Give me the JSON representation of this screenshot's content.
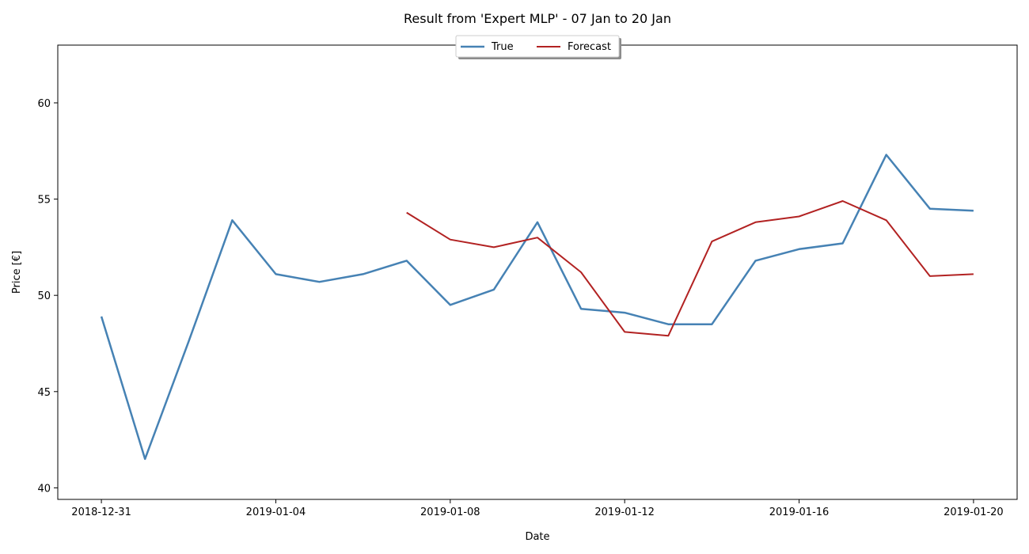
{
  "chart_data": {
    "type": "line",
    "title": "Result from 'Expert MLP' - 07 Jan to 20 Jan",
    "xlabel": "Date",
    "ylabel": "Price [€]",
    "xlim": [
      "2018-12-30",
      "2019-01-21"
    ],
    "ylim": [
      39.4,
      63.0
    ],
    "x_ticks": [
      "2018-12-31",
      "2019-01-04",
      "2019-01-08",
      "2019-01-12",
      "2019-01-16",
      "2019-01-20"
    ],
    "y_ticks": [
      40,
      45,
      50,
      55,
      60
    ],
    "grid": false,
    "legend_position": "top-center",
    "series": [
      {
        "name": "True",
        "color": "#4682b4",
        "x": [
          "2018-12-31",
          "2019-01-01",
          "2019-01-02",
          "2019-01-03",
          "2019-01-04",
          "2019-01-05",
          "2019-01-06",
          "2019-01-07",
          "2019-01-08",
          "2019-01-09",
          "2019-01-10",
          "2019-01-11",
          "2019-01-12",
          "2019-01-13",
          "2019-01-14",
          "2019-01-15",
          "2019-01-16",
          "2019-01-17",
          "2019-01-18",
          "2019-01-19",
          "2019-01-20"
        ],
        "values": [
          48.9,
          41.5,
          47.6,
          53.9,
          51.1,
          50.7,
          51.1,
          51.8,
          49.5,
          50.3,
          53.8,
          49.3,
          49.1,
          48.5,
          48.5,
          51.8,
          52.4,
          52.7,
          57.3,
          54.5,
          54.4
        ]
      },
      {
        "name": "Forecast",
        "color": "#b22222",
        "x": [
          "2019-01-07",
          "2019-01-08",
          "2019-01-09",
          "2019-01-10",
          "2019-01-11",
          "2019-01-12",
          "2019-01-13",
          "2019-01-14",
          "2019-01-15",
          "2019-01-16",
          "2019-01-17",
          "2019-01-18",
          "2019-01-19",
          "2019-01-20"
        ],
        "values": [
          54.3,
          52.9,
          52.5,
          53.0,
          51.2,
          48.1,
          47.9,
          52.8,
          53.8,
          54.1,
          54.9,
          53.9,
          51.0,
          51.1
        ]
      }
    ]
  }
}
